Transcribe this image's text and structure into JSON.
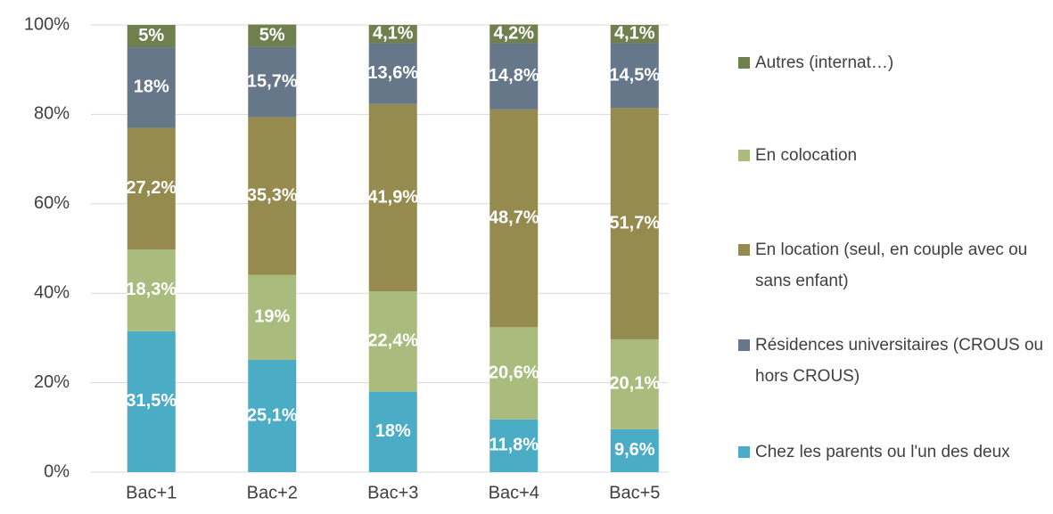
{
  "chart_data": {
    "type": "stacked_bar",
    "categories": [
      "Bac+1",
      "Bac+2",
      "Bac+3",
      "Bac+4",
      "Bac+5"
    ],
    "series": [
      {
        "name": "Chez les parents ou l'un des deux",
        "color": "#4bacc6",
        "values": [
          31.5,
          25.1,
          18,
          11.8,
          9.6
        ],
        "value_labels": [
          "31,5%",
          "25,1%",
          "18%",
          "11,8%",
          "9,6%"
        ]
      },
      {
        "name": "En colocation",
        "color": "#a9bc7d",
        "values": [
          18.3,
          19,
          22.4,
          20.6,
          20.1
        ],
        "value_labels": [
          "18,3%",
          "19%",
          "22,4%",
          "20,6%",
          "20,1%"
        ]
      },
      {
        "name": "En location (seul, en couple avec ou sans enfant)",
        "color": "#958b4f",
        "values": [
          27.2,
          35.3,
          41.9,
          48.7,
          51.7
        ],
        "value_labels": [
          "27,2%",
          "35,3%",
          "41,9%",
          "48,7%",
          "51,7%"
        ]
      },
      {
        "name": "Résidences universitaires (CROUS ou hors CROUS)",
        "color": "#66778a",
        "values": [
          18,
          15.7,
          13.6,
          14.8,
          14.5
        ],
        "value_labels": [
          "18%",
          "15,7%",
          "13,6%",
          "14,8%",
          "14,5%"
        ]
      },
      {
        "name": "Autres (internat…)",
        "color": "#6f7f4e",
        "values": [
          5,
          5,
          4.1,
          4.2,
          4.1
        ],
        "value_labels": [
          "5%",
          "5%",
          "4,1%",
          "4,2%",
          "4,1%"
        ]
      }
    ],
    "ylim": [
      0,
      100
    ],
    "yticks": [
      {
        "value": 0,
        "label": "0%"
      },
      {
        "value": 20,
        "label": "20%"
      },
      {
        "value": 40,
        "label": "40%"
      },
      {
        "value": 60,
        "label": "60%"
      },
      {
        "value": 80,
        "label": "80%"
      },
      {
        "value": 100,
        "label": "100%"
      }
    ],
    "grid": true,
    "legend": "right"
  }
}
